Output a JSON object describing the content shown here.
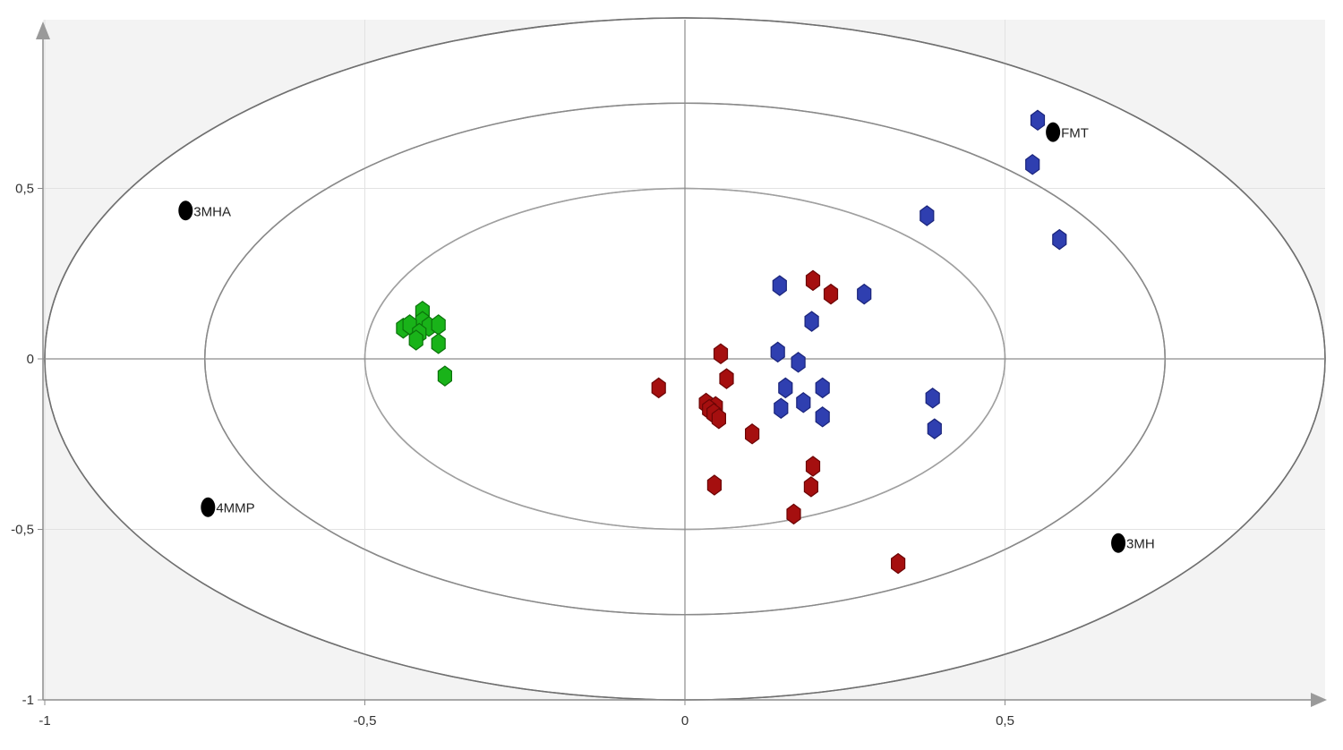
{
  "chart_data": {
    "type": "scatter",
    "title": "",
    "xlabel": "",
    "ylabel": "",
    "xlim": [
      -1.0,
      1.0
    ],
    "ylim": [
      -1.0,
      0.9
    ],
    "grid": true,
    "x_ticks": [
      {
        "value": -1.0,
        "label": "-1"
      },
      {
        "value": -0.5,
        "label": "-0,5"
      },
      {
        "value": 0.0,
        "label": "0"
      },
      {
        "value": 0.5,
        "label": "0,5"
      }
    ],
    "y_ticks": [
      {
        "value": 0.5,
        "label": "0,5"
      },
      {
        "value": 0.0,
        "label": "0"
      },
      {
        "value": -0.5,
        "label": "-0,5"
      },
      {
        "value": -1.0,
        "label": "-1"
      }
    ],
    "ellipses": [
      1.0,
      0.75,
      0.5
    ],
    "variables": [
      {
        "label": "3MHA",
        "x": -0.78,
        "y": 0.435
      },
      {
        "label": "4MMP",
        "x": -0.745,
        "y": -0.435
      },
      {
        "label": "FMT",
        "x": 0.575,
        "y": 0.665
      },
      {
        "label": "3MH",
        "x": 0.677,
        "y": -0.54
      }
    ],
    "series": [
      {
        "color": "#2f3fb0",
        "stroke": "#1a247a",
        "points": [
          [
            0.551,
            0.7
          ],
          [
            0.543,
            0.57
          ],
          [
            0.378,
            0.42
          ],
          [
            0.585,
            0.35
          ],
          [
            0.148,
            0.215
          ],
          [
            0.28,
            0.19
          ],
          [
            0.198,
            0.11
          ],
          [
            0.145,
            0.02
          ],
          [
            0.177,
            -0.01
          ],
          [
            0.157,
            -0.085
          ],
          [
            0.215,
            -0.085
          ],
          [
            0.387,
            -0.115
          ],
          [
            0.185,
            -0.128
          ],
          [
            0.15,
            -0.145
          ],
          [
            0.215,
            -0.17
          ],
          [
            0.39,
            -0.205
          ]
        ]
      },
      {
        "color": "#a50f0f",
        "stroke": "#6b0505",
        "points": [
          [
            0.2,
            0.23
          ],
          [
            0.228,
            0.19
          ],
          [
            0.056,
            0.015
          ],
          [
            0.065,
            -0.058
          ],
          [
            -0.041,
            -0.085
          ],
          [
            0.033,
            -0.13
          ],
          [
            0.048,
            -0.14
          ],
          [
            0.038,
            -0.148
          ],
          [
            0.045,
            -0.16
          ],
          [
            0.053,
            -0.175
          ],
          [
            0.105,
            -0.22
          ],
          [
            0.2,
            -0.315
          ],
          [
            0.046,
            -0.37
          ],
          [
            0.197,
            -0.375
          ],
          [
            0.17,
            -0.455
          ],
          [
            0.333,
            -0.6
          ]
        ]
      },
      {
        "color": "#19b319",
        "stroke": "#0b730b",
        "points": [
          [
            -0.41,
            0.14
          ],
          [
            -0.41,
            0.11
          ],
          [
            -0.4,
            0.095
          ],
          [
            -0.385,
            0.1
          ],
          [
            -0.44,
            0.09
          ],
          [
            -0.43,
            0.1
          ],
          [
            -0.415,
            0.075
          ],
          [
            -0.42,
            0.055
          ],
          [
            -0.385,
            0.045
          ],
          [
            -0.375,
            -0.05
          ]
        ]
      }
    ]
  }
}
